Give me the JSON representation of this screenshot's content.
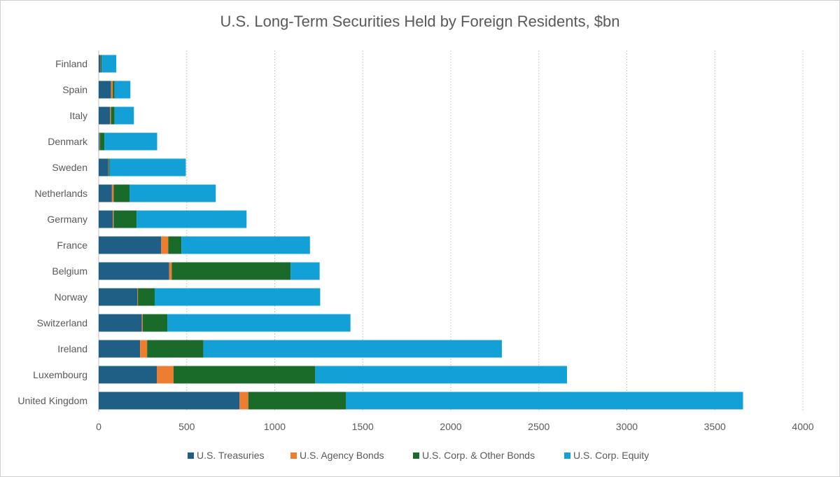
{
  "chart_data": {
    "type": "bar",
    "orientation": "horizontal",
    "stacked": true,
    "title": "U.S. Long-Term Securities Held by Foreign Residents, $bn",
    "xlabel": "",
    "ylabel": "",
    "xlim": [
      0,
      4000
    ],
    "xticks": [
      0,
      500,
      1000,
      1500,
      2000,
      2500,
      3000,
      3500,
      4000
    ],
    "grid": "vertical-dashed",
    "legend_position": "bottom",
    "categories": [
      "Finland",
      "Spain",
      "Italy",
      "Denmark",
      "Sweden",
      "Netherlands",
      "Germany",
      "France",
      "Belgium",
      "Norway",
      "Switzerland",
      "Ireland",
      "Luxembourg",
      "United Kingdom"
    ],
    "series": [
      {
        "name": "U.S. Treasuries",
        "color": "#1f5f86",
        "values": [
          10,
          70,
          65,
          5,
          55,
          75,
          80,
          355,
          400,
          220,
          245,
          235,
          330,
          800
        ]
      },
      {
        "name": "U.S. Agency Bonds",
        "color": "#ed7d31",
        "values": [
          2,
          10,
          5,
          2,
          2,
          10,
          5,
          40,
          15,
          3,
          5,
          40,
          95,
          50
        ]
      },
      {
        "name": "U.S. Corp. & Other Bonds",
        "color": "#1a6b2a",
        "values": [
          5,
          10,
          20,
          25,
          5,
          90,
          130,
          75,
          675,
          95,
          140,
          320,
          805,
          555
        ]
      },
      {
        "name": "U.S. Corp. Equity",
        "color": "#13a0d6",
        "values": [
          83,
          90,
          110,
          300,
          433,
          490,
          625,
          730,
          165,
          940,
          1040,
          1695,
          1430,
          2255
        ]
      }
    ]
  }
}
